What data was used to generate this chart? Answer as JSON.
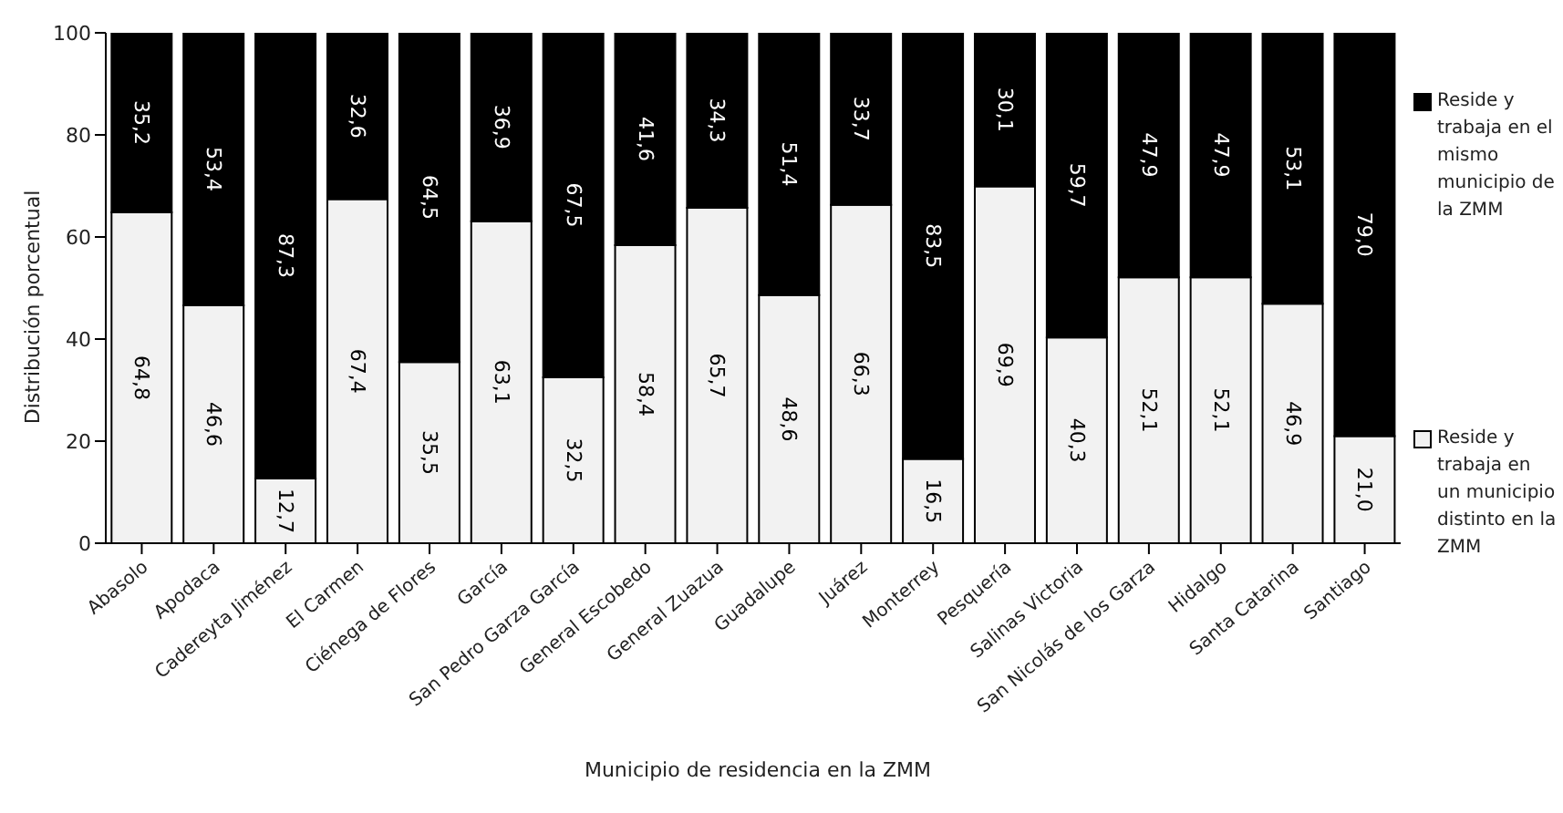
{
  "chart_data": {
    "type": "bar",
    "stacked": true,
    "xlabel": "Municipio de residencia en la ZMM",
    "ylabel": "Distribución porcentual",
    "categories": [
      "Abasolo",
      "Apodaca",
      "Cadereyta Jiménez",
      "El Carmen",
      "Ciénega de Flores",
      "García",
      "San Pedro Garza García",
      "General Escobedo",
      "General Zuazua",
      "Guadalupe",
      "Juárez",
      "Monterrey",
      "Pesquería",
      "Salinas Victoria",
      "San Nicolás de los Garza",
      "Hidalgo",
      "Santa Catarina",
      "Santiago"
    ],
    "series": [
      {
        "name": "Reside y trabaja en un municipio distinto en la ZMM",
        "color": "#f2f2f2",
        "values": [
          64.8,
          46.6,
          12.7,
          67.4,
          35.5,
          63.1,
          32.5,
          58.4,
          65.7,
          48.6,
          66.3,
          16.5,
          69.9,
          40.3,
          52.1,
          52.1,
          46.9,
          21.0
        ],
        "value_labels": [
          "64,8",
          "46,6",
          "12,7",
          "67,4",
          "35,5",
          "63,1",
          "32,5",
          "58,4",
          "65,7",
          "48,6",
          "66,3",
          "16,5",
          "69,9",
          "40,3",
          "52,1",
          "52,1",
          "46,9",
          "21,0"
        ]
      },
      {
        "name": "Reside y trabaja en el mismo municipio de la ZMM",
        "color": "#000000",
        "values": [
          35.2,
          53.4,
          87.3,
          32.6,
          64.5,
          36.9,
          67.5,
          41.6,
          34.3,
          51.4,
          33.7,
          83.5,
          30.1,
          59.7,
          47.9,
          47.9,
          53.1,
          79.0
        ],
        "value_labels": [
          "35,2",
          "53,4",
          "87,3",
          "32,6",
          "64,5",
          "36,9",
          "67,5",
          "41,6",
          "34,3",
          "51,4",
          "33,7",
          "83,5",
          "30,1",
          "59,7",
          "47,9",
          "47,9",
          "53,1",
          "79,0"
        ]
      }
    ],
    "ylim": [
      0,
      100
    ],
    "yticks": [
      0,
      20,
      40,
      60,
      80,
      100
    ],
    "legend": "right"
  }
}
